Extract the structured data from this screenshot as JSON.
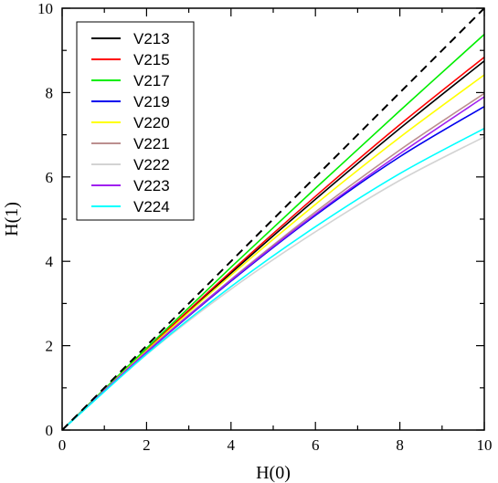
{
  "chart_data": {
    "type": "line",
    "title": "",
    "xlabel": "H(0)",
    "ylabel": "H(1)",
    "xlim": [
      0,
      10
    ],
    "ylim": [
      0,
      10
    ],
    "xticks": [
      "0",
      "2",
      "4",
      "6",
      "8",
      "10"
    ],
    "yticks": [
      "0",
      "2",
      "4",
      "6",
      "8",
      "10"
    ],
    "grid": false,
    "legend_position": "top-left",
    "reference_line": {
      "style": "dashed",
      "color": "#000000",
      "x": [
        0,
        10
      ],
      "y": [
        0,
        10
      ]
    },
    "x": [
      0,
      2,
      4,
      6,
      8,
      10
    ],
    "series": [
      {
        "name": "V213",
        "color": "#000000",
        "values": [
          0,
          1.9,
          3.72,
          5.47,
          7.15,
          8.75
        ]
      },
      {
        "name": "V215",
        "color": "#ff0000",
        "values": [
          0,
          1.91,
          3.76,
          5.54,
          7.24,
          8.84
        ]
      },
      {
        "name": "V217",
        "color": "#00ee00",
        "values": [
          0,
          1.94,
          3.86,
          5.73,
          7.57,
          9.38
        ]
      },
      {
        "name": "V219",
        "color": "#0000ee",
        "values": [
          0,
          1.84,
          3.53,
          5.09,
          6.48,
          7.67
        ]
      },
      {
        "name": "V220",
        "color": "#ffff00",
        "values": [
          0,
          1.88,
          3.67,
          5.35,
          6.94,
          8.42
        ]
      },
      {
        "name": "V221",
        "color": "#bc8f8f",
        "values": [
          0,
          1.86,
          3.57,
          5.17,
          6.64,
          7.98
        ]
      },
      {
        "name": "V222",
        "color": "#d3d3d3",
        "values": [
          0,
          1.79,
          3.34,
          4.7,
          5.92,
          6.95
        ]
      },
      {
        "name": "V223",
        "color": "#a020f0",
        "values": [
          0,
          1.85,
          3.55,
          5.12,
          6.55,
          7.9
        ]
      },
      {
        "name": "V224",
        "color": "#00ffff",
        "values": [
          0,
          1.8,
          3.4,
          4.82,
          6.08,
          7.15
        ]
      }
    ]
  }
}
